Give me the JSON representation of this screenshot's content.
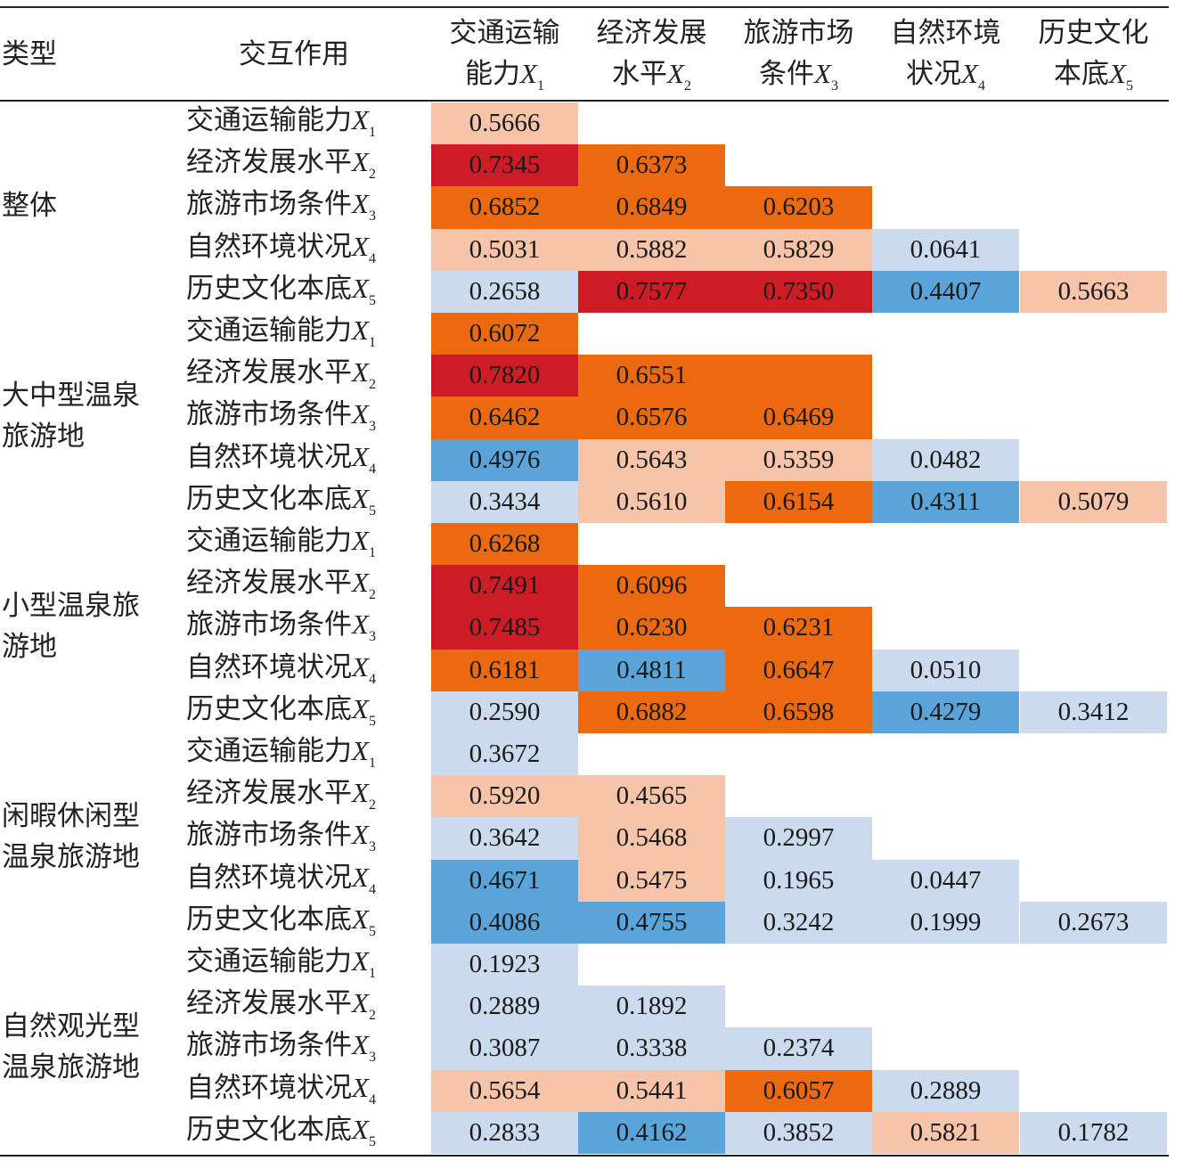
{
  "table": {
    "header": {
      "type_label": "类型",
      "interaction_label": "交互作用",
      "columns": [
        {
          "line1": "交通运输",
          "line2": "能力",
          "var": "X",
          "sub": "1"
        },
        {
          "line1": "经济发展",
          "line2": "水平",
          "var": "X",
          "sub": "2"
        },
        {
          "line1": "旅游市场",
          "line2": "条件",
          "var": "X",
          "sub": "3"
        },
        {
          "line1": "自然环境",
          "line2": "状况",
          "var": "X",
          "sub": "4"
        },
        {
          "line1": "历史文化",
          "line2": "本底",
          "var": "X",
          "sub": "5"
        }
      ]
    },
    "row_labels": [
      {
        "name": "交通运输能力",
        "var": "X",
        "sub": "1"
      },
      {
        "name": "经济发展水平",
        "var": "X",
        "sub": "2"
      },
      {
        "name": "旅游市场条件",
        "var": "X",
        "sub": "3"
      },
      {
        "name": "自然环境状况",
        "var": "X",
        "sub": "4"
      },
      {
        "name": "历史文化本底",
        "var": "X",
        "sub": "5"
      }
    ],
    "groups": [
      {
        "lines": [
          "整体"
        ]
      },
      {
        "lines": [
          "大中型温泉",
          "旅游地"
        ]
      },
      {
        "lines": [
          "小型温泉旅",
          "游地"
        ]
      },
      {
        "lines": [
          "闲暇休闲型",
          "温泉旅游地"
        ]
      },
      {
        "lines": [
          "自然观光型",
          "温泉旅游地"
        ]
      }
    ]
  },
  "palette": {
    "dark_red": "#cc1d26",
    "orange": "#eb6a0f",
    "light_salmon": "#f6c4a9",
    "mid_blue": "#5aa4d9",
    "light_blue": "#ccdaed"
  },
  "chart_data": {
    "type": "heatmap",
    "groups": [
      "整体",
      "大中型温泉旅游地",
      "小型温泉旅游地",
      "闲暇休闲型温泉旅游地",
      "自然观光型温泉旅游地"
    ],
    "rows": [
      "交通运输能力X1",
      "经济发展水平X2",
      "旅游市场条件X3",
      "自然环境状况X4",
      "历史文化本底X5"
    ],
    "columns": [
      "交通运输能力X1",
      "经济发展水平X2",
      "旅游市场条件X3",
      "自然环境状况X4",
      "历史文化本底X5"
    ],
    "values": [
      [
        [
          "0.5666"
        ],
        [
          "0.7345",
          "0.6373"
        ],
        [
          "0.6852",
          "0.6849",
          "0.6203"
        ],
        [
          "0.5031",
          "0.5882",
          "0.5829",
          "0.0641"
        ],
        [
          "0.2658",
          "0.7577",
          "0.7350",
          "0.4407",
          "0.5663"
        ]
      ],
      [
        [
          "0.6072"
        ],
        [
          "0.7820",
          "0.6551"
        ],
        [
          "0.6462",
          "0.6576",
          "0.6469"
        ],
        [
          "0.4976",
          "0.5643",
          "0.5359",
          "0.0482"
        ],
        [
          "0.3434",
          "0.5610",
          "0.6154",
          "0.4311",
          "0.5079"
        ]
      ],
      [
        [
          "0.6268"
        ],
        [
          "0.7491",
          "0.6096"
        ],
        [
          "0.7485",
          "0.6230",
          "0.6231"
        ],
        [
          "0.6181",
          "0.4811",
          "0.6647",
          "0.0510"
        ],
        [
          "0.2590",
          "0.6882",
          "0.6598",
          "0.4279",
          "0.3412"
        ]
      ],
      [
        [
          "0.3672"
        ],
        [
          "0.5920",
          "0.4565"
        ],
        [
          "0.3642",
          "0.5468",
          "0.2997"
        ],
        [
          "0.4671",
          "0.5475",
          "0.1965",
          "0.0447"
        ],
        [
          "0.4086",
          "0.4755",
          "0.3242",
          "0.1999",
          "0.2673"
        ]
      ],
      [
        [
          "0.1923"
        ],
        [
          "0.2889",
          "0.1892"
        ],
        [
          "0.3087",
          "0.3338",
          "0.2374"
        ],
        [
          "0.5654",
          "0.5441",
          "0.6057",
          "0.2889"
        ],
        [
          "0.2833",
          "0.4162",
          "0.3852",
          "0.5821",
          "0.1782"
        ]
      ]
    ],
    "colors": [
      [
        [
          "light_salmon"
        ],
        [
          "dark_red",
          "orange"
        ],
        [
          "orange",
          "orange",
          "orange"
        ],
        [
          "light_salmon",
          "light_salmon",
          "light_salmon",
          "light_blue"
        ],
        [
          "light_blue",
          "dark_red",
          "dark_red",
          "mid_blue",
          "light_salmon"
        ]
      ],
      [
        [
          "orange"
        ],
        [
          "dark_red",
          "orange"
        ],
        [
          "orange",
          "orange",
          "orange"
        ],
        [
          "mid_blue",
          "light_salmon",
          "light_salmon",
          "light_blue"
        ],
        [
          "light_blue",
          "light_salmon",
          "orange",
          "mid_blue",
          "light_salmon"
        ]
      ],
      [
        [
          "orange"
        ],
        [
          "dark_red",
          "orange"
        ],
        [
          "dark_red",
          "orange",
          "orange"
        ],
        [
          "orange",
          "mid_blue",
          "orange",
          "light_blue"
        ],
        [
          "light_blue",
          "orange",
          "orange",
          "mid_blue",
          "light_blue"
        ]
      ],
      [
        [
          "light_blue"
        ],
        [
          "light_salmon",
          "light_salmon"
        ],
        [
          "light_blue",
          "light_salmon",
          "light_blue"
        ],
        [
          "mid_blue",
          "light_salmon",
          "light_blue",
          "light_blue"
        ],
        [
          "mid_blue",
          "mid_blue",
          "light_blue",
          "light_blue",
          "light_blue"
        ]
      ],
      [
        [
          "light_blue"
        ],
        [
          "light_blue",
          "light_blue"
        ],
        [
          "light_blue",
          "light_blue",
          "light_blue"
        ],
        [
          "light_salmon",
          "light_salmon",
          "orange",
          "light_blue"
        ],
        [
          "light_blue",
          "mid_blue",
          "light_blue",
          "light_salmon",
          "light_blue"
        ]
      ]
    ],
    "extra_fills": [
      {
        "group": 1,
        "row": 1,
        "col": 2,
        "color": "orange"
      }
    ]
  }
}
